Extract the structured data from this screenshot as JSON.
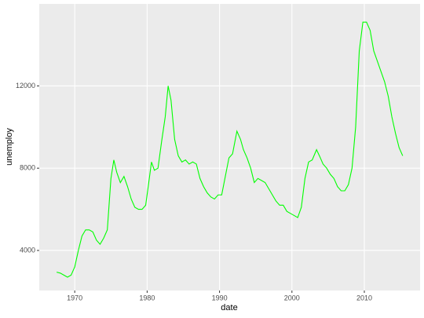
{
  "chart_data": {
    "type": "line",
    "x_label": "date",
    "y_label": "unemploy",
    "xlim": [
      1965.1,
      2017.7
    ],
    "xticks": [
      1970,
      1980,
      1990,
      2000,
      2010
    ],
    "ylim": [
      2052,
      15985
    ],
    "yticks": [
      4000,
      8000,
      12000
    ],
    "grid": true,
    "series": [
      {
        "color": "#00ff00",
        "x": [
          1967.5,
          1968.0,
          1968.5,
          1969.0,
          1969.5,
          1970.0,
          1970.5,
          1971.0,
          1971.5,
          1972.0,
          1972.5,
          1973.0,
          1973.5,
          1974.0,
          1974.5,
          1975.0,
          1975.4,
          1975.8,
          1976.3,
          1976.8,
          1977.3,
          1977.8,
          1978.3,
          1978.8,
          1979.3,
          1979.8,
          1980.3,
          1980.6,
          1981.0,
          1981.5,
          1982.0,
          1982.5,
          1982.9,
          1983.3,
          1983.8,
          1984.3,
          1984.8,
          1985.3,
          1985.8,
          1986.3,
          1986.8,
          1987.3,
          1987.8,
          1988.3,
          1988.8,
          1989.3,
          1989.8,
          1990.3,
          1990.8,
          1991.3,
          1991.8,
          1992.4,
          1992.9,
          1993.3,
          1993.8,
          1994.3,
          1994.8,
          1995.3,
          1995.8,
          1996.3,
          1996.8,
          1997.3,
          1997.8,
          1998.3,
          1998.8,
          1999.3,
          1999.8,
          2000.3,
          2000.8,
          2001.3,
          2001.8,
          2002.3,
          2002.8,
          2003.4,
          2003.8,
          2004.3,
          2004.8,
          2005.3,
          2005.8,
          2006.3,
          2006.8,
          2007.3,
          2007.8,
          2008.3,
          2008.8,
          2009.3,
          2009.8,
          2010.3,
          2010.8,
          2011.3,
          2011.8,
          2012.3,
          2012.8,
          2013.3,
          2013.8,
          2014.3,
          2014.8,
          2015.3
        ],
        "values": [
          2944,
          2900,
          2800,
          2700,
          2800,
          3200,
          4000,
          4700,
          5000,
          5000,
          4900,
          4500,
          4300,
          4600,
          5000,
          7500,
          8400,
          7800,
          7300,
          7600,
          7100,
          6500,
          6100,
          6000,
          6000,
          6200,
          7500,
          8300,
          7900,
          8000,
          9300,
          10500,
          12000,
          11300,
          9400,
          8600,
          8300,
          8400,
          8200,
          8300,
          8200,
          7500,
          7100,
          6800,
          6600,
          6500,
          6700,
          6700,
          7600,
          8500,
          8700,
          9800,
          9400,
          8900,
          8500,
          8000,
          7300,
          7500,
          7400,
          7300,
          7000,
          6700,
          6400,
          6200,
          6200,
          5900,
          5800,
          5700,
          5600,
          6100,
          7500,
          8300,
          8400,
          8900,
          8600,
          8200,
          8000,
          7700,
          7500,
          7100,
          6900,
          6900,
          7200,
          8000,
          10000,
          13700,
          15100,
          15100,
          14700,
          13700,
          13200,
          12700,
          12200,
          11500,
          10500,
          9700,
          9000,
          8600
        ]
      }
    ]
  }
}
